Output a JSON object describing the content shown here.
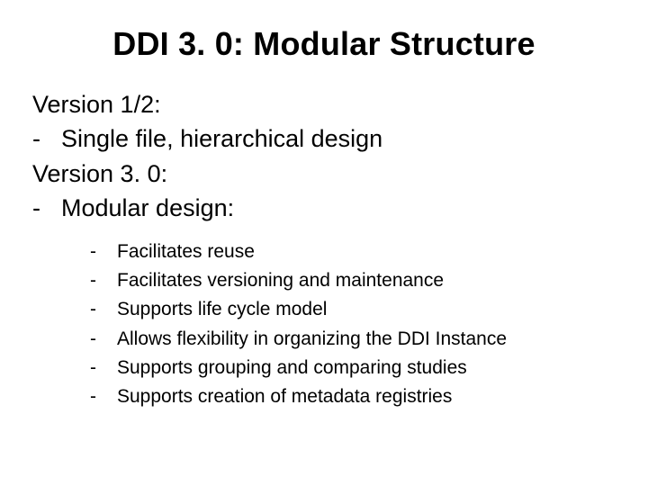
{
  "colors": {
    "background": "#ffffff",
    "text": "#000000"
  },
  "typography": {
    "family": "Arial",
    "title_size_pt": 36,
    "title_weight": "bold",
    "body_size_pt": 27,
    "sub_size_pt": 21
  },
  "title": "DDI 3. 0: Modular Structure",
  "bullet_char": "-",
  "body_lines": [
    {
      "bullet": false,
      "text": "Version 1/2:"
    },
    {
      "bullet": true,
      "text": "Single file, hierarchical design"
    },
    {
      "bullet": false,
      "text": "Version 3. 0:"
    },
    {
      "bullet": true,
      "text": "Modular design:"
    }
  ],
  "sub_items": [
    "Facilitates reuse",
    "Facilitates versioning and maintenance",
    "Supports life cycle model",
    "Allows flexibility in organizing the DDI Instance",
    "Supports grouping and comparing studies",
    "Supports creation of metadata registries"
  ]
}
